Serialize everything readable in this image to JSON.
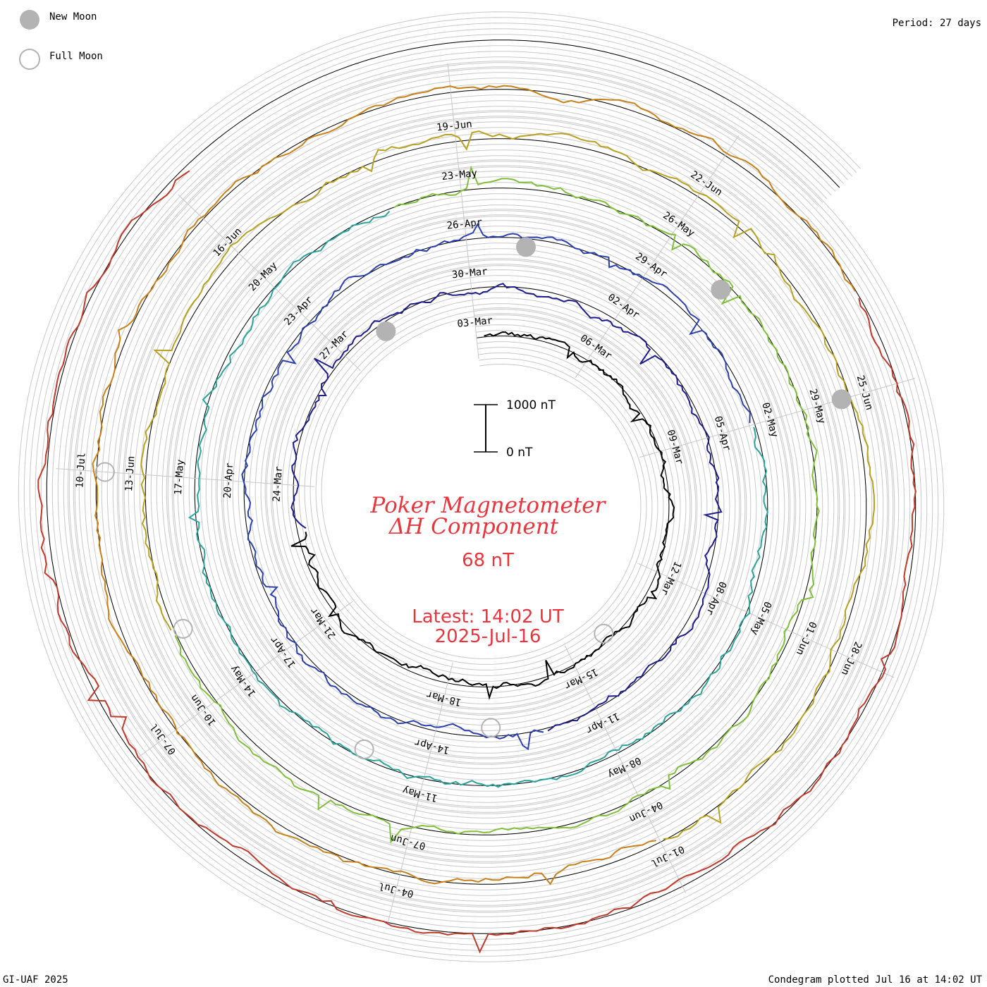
{
  "legend": {
    "new_moon": "New Moon",
    "full_moon": "Full Moon",
    "moon_fill_color": "#b3b3b3"
  },
  "period_label": "Period: 27 days",
  "title": {
    "line1": "Poker Magnetometer",
    "line2": "ΔH Component",
    "value": "68 nT"
  },
  "latest": {
    "line1": "Latest: 14:02 UT",
    "line2": "2025-Jul-16"
  },
  "scale_bar": {
    "top": "1000 nT",
    "bottom": "0 nT"
  },
  "footer": {
    "left": "GI-UAF 2025",
    "right": "Condegram plotted Jul 16 at 14:02 UT"
  },
  "chart_data": {
    "type": "line",
    "layout": "spiral condegram (one turn per 27-day period)",
    "period_days": 27,
    "units": "nT",
    "series": [
      {
        "color": "#000000",
        "dates": [
          "03-Mar",
          "06-Mar",
          "09-Mar",
          "12-Mar",
          "15-Mar",
          "18-Mar",
          "21-Mar",
          "24-Mar",
          "27-Mar"
        ]
      },
      {
        "color": "#2b2b9e",
        "dates": [
          "30-Mar",
          "02-Apr",
          "05-Apr",
          "08-Apr",
          "11-Apr",
          "14-Apr",
          "17-Apr",
          "20-Apr",
          "23-Apr"
        ]
      },
      {
        "color": "#2aa39a",
        "dates": [
          "26-Apr",
          "29-Apr",
          "02-May",
          "05-May",
          "08-May",
          "11-May",
          "14-May",
          "17-May",
          "20-May"
        ]
      },
      {
        "color": "#7fbf3a",
        "dates": [
          "23-May",
          "26-May",
          "29-May",
          "01-Jun",
          "04-Jun",
          "07-Jun",
          "10-Jun",
          "13-Jun",
          "16-Jun"
        ]
      },
      {
        "color": "#b8a020",
        "dates": [
          "19-Jun",
          "22-Jun",
          "25-Jun",
          "28-Jun",
          "01-Jul",
          "04-Jul",
          "07-Jul",
          "10-Jul"
        ]
      },
      {
        "color": "#c0392b",
        "dates": []
      }
    ],
    "new_moon_dates": [
      "28-Mar",
      "27-Apr",
      "27-May",
      "25-Jun"
    ],
    "full_moon_dates": [
      "14-Mar",
      "13-Apr",
      "12-May",
      "11-Jun",
      "10-Jul"
    ],
    "latest_value": 68,
    "latest_time": "2025-Jul-16 14:02 UT"
  }
}
